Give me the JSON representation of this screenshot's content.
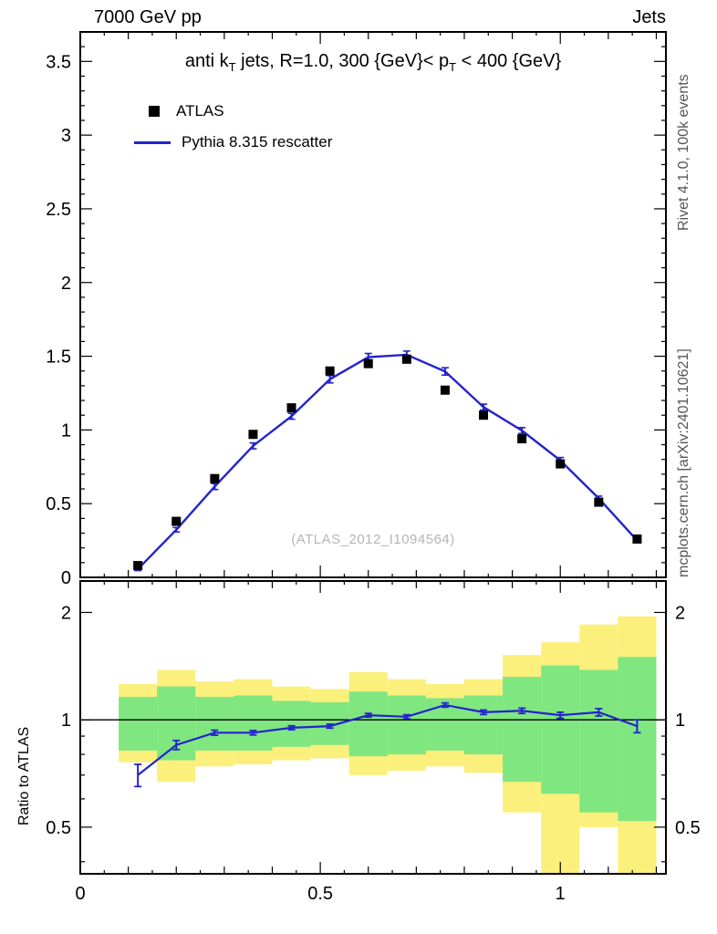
{
  "colors": {
    "atlas": "#000000",
    "pythia": "#2323cc",
    "band_yellow": "#fbf07c",
    "band_green": "#80e680",
    "watermark": "#b5b5b5",
    "side_text": "#555555"
  },
  "header": {
    "left": "7000 GeV pp",
    "right": "Jets"
  },
  "side_notes": {
    "rivet": "Rivet 4.1.0,  100k events",
    "mcplots": "mcplots.cern.ch [arXiv:2401.10621]"
  },
  "title": {
    "pre": "anti k",
    "sub1": "T",
    "mid": " jets, R=1.0,  300 {GeV}< p",
    "sub2": "T",
    "post": " < 400 {GeV}"
  },
  "legend": {
    "atlas": "ATLAS",
    "pythia": "Pythia 8.315 rescatter"
  },
  "watermark": "(ATLAS_2012_I1094564)",
  "chart_data": {
    "type": "line",
    "x_centers": [
      0.12,
      0.2,
      0.28,
      0.36,
      0.44,
      0.52,
      0.6,
      0.68,
      0.76,
      0.84,
      0.92,
      1.0,
      1.08,
      1.16
    ],
    "bin_edges": [
      0.08,
      0.16,
      0.24,
      0.32,
      0.4,
      0.48,
      0.56,
      0.64,
      0.72,
      0.8,
      0.88,
      0.96,
      1.04,
      1.12,
      1.2
    ],
    "xlim": [
      0,
      1.22
    ],
    "xticks": {
      "major": [
        0,
        0.5,
        1
      ],
      "labels": [
        "0",
        "0.5",
        "1"
      ]
    },
    "main_panel": {
      "ylim": [
        0,
        3.7
      ],
      "yticks": {
        "major": [
          0,
          0.5,
          1,
          1.5,
          2,
          2.5,
          3,
          3.5
        ],
        "labels": [
          "0",
          "0.5",
          "1",
          "1.5",
          "2",
          "2.5",
          "3",
          "3.5"
        ]
      },
      "series": [
        {
          "name": "ATLAS",
          "style": "squares",
          "y": [
            0.08,
            0.38,
            0.67,
            0.97,
            1.15,
            1.4,
            1.45,
            1.48,
            1.27,
            1.1,
            0.94,
            0.77,
            0.51,
            0.26
          ]
        },
        {
          "name": "Pythia 8.315 rescatter",
          "style": "line",
          "y": [
            0.056,
            0.323,
            0.616,
            0.892,
            1.093,
            1.344,
            1.494,
            1.51,
            1.397,
            1.155,
            0.996,
            0.793,
            0.536,
            0.25
          ],
          "err": [
            0.01,
            0.015,
            0.02,
            0.02,
            0.02,
            0.025,
            0.025,
            0.025,
            0.025,
            0.02,
            0.02,
            0.02,
            0.015,
            0.012
          ]
        }
      ]
    },
    "ratio_panel": {
      "ylabel": "Ratio to ATLAS",
      "scale": "log",
      "ylim": [
        0.37,
        2.45
      ],
      "yticks": {
        "major": [
          0.5,
          1,
          2
        ],
        "labels": [
          "0.5",
          "1",
          "2"
        ],
        "minor": [
          0.4,
          0.6,
          0.7,
          0.8,
          0.9
        ]
      },
      "ref_line": 1,
      "band_yellow": {
        "hi": [
          1.26,
          1.38,
          1.28,
          1.3,
          1.24,
          1.22,
          1.36,
          1.3,
          1.26,
          1.3,
          1.52,
          1.65,
          1.85,
          1.95
        ],
        "lo": [
          0.76,
          0.67,
          0.74,
          0.75,
          0.77,
          0.78,
          0.7,
          0.72,
          0.74,
          0.71,
          0.55,
          0.37,
          0.5,
          0.37
        ]
      },
      "band_green": {
        "hi": [
          1.16,
          1.24,
          1.16,
          1.17,
          1.13,
          1.12,
          1.2,
          1.17,
          1.15,
          1.17,
          1.32,
          1.42,
          1.38,
          1.5
        ],
        "lo": [
          0.82,
          0.77,
          0.82,
          0.82,
          0.84,
          0.85,
          0.79,
          0.8,
          0.82,
          0.8,
          0.67,
          0.62,
          0.55,
          0.52
        ]
      },
      "ratio": {
        "y": [
          0.7,
          0.85,
          0.92,
          0.92,
          0.95,
          0.96,
          1.03,
          1.02,
          1.1,
          1.05,
          1.06,
          1.03,
          1.05,
          0.96
        ],
        "err": [
          0.05,
          0.025,
          0.015,
          0.013,
          0.012,
          0.012,
          0.012,
          0.013,
          0.015,
          0.015,
          0.018,
          0.02,
          0.025,
          0.04
        ]
      }
    }
  }
}
